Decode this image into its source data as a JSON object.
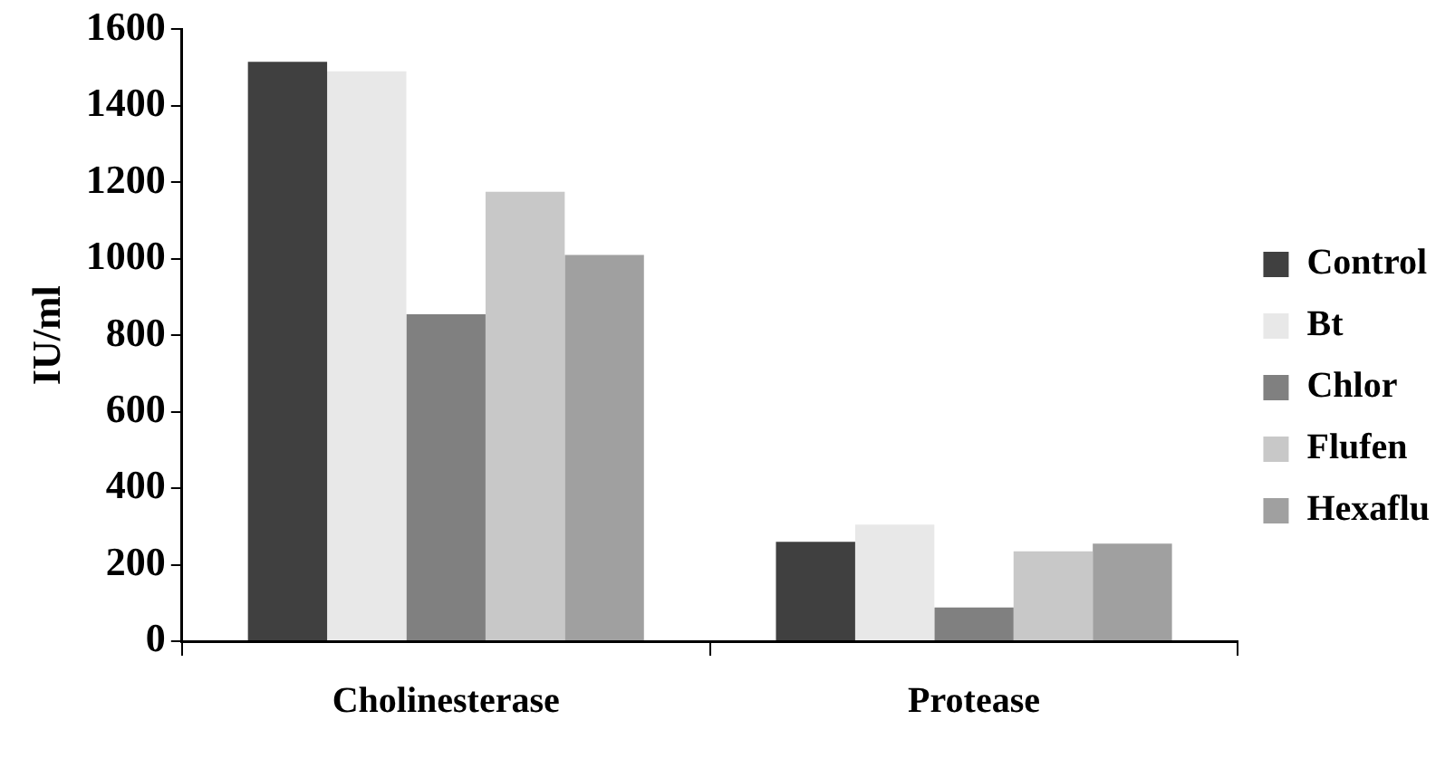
{
  "chart_data": {
    "type": "bar",
    "ylabel": "IU/ml",
    "categories": [
      "Cholinesterase",
      "Protease"
    ],
    "series": [
      {
        "name": "Control",
        "color": "#404040",
        "values": [
          1515,
          260
        ]
      },
      {
        "name": "Bt",
        "color": "#e8e8e8",
        "values": [
          1490,
          305
        ]
      },
      {
        "name": "Chlor",
        "color": "#808080",
        "values": [
          855,
          88
        ]
      },
      {
        "name": "Flufen",
        "color": "#c8c8c8",
        "values": [
          1175,
          235
        ]
      },
      {
        "name": "Hexaflu",
        "color": "#a0a0a0",
        "values": [
          1010,
          255
        ]
      }
    ],
    "ylim": [
      0,
      1600
    ],
    "yticks": [
      0,
      200,
      400,
      600,
      800,
      1000,
      1200,
      1400,
      1600
    ],
    "grid": false,
    "legend": "right"
  }
}
